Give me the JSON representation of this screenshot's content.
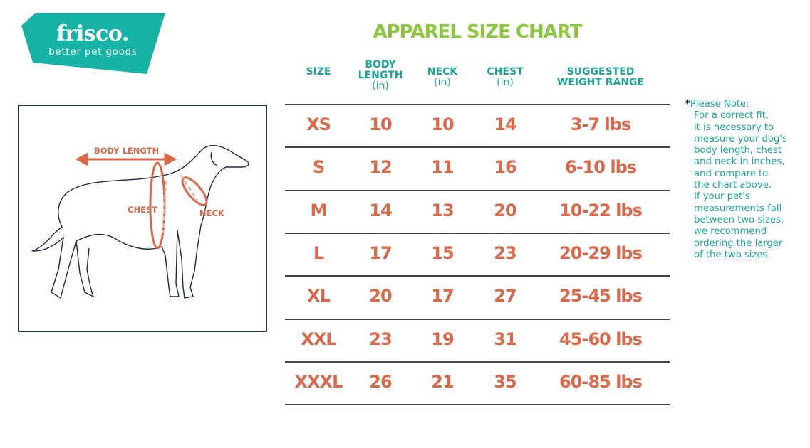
{
  "logo": {
    "name": "frisco.",
    "tagline": "better pet goods",
    "color": "#17b3a6"
  },
  "title": "APPAREL SIZE CHART",
  "diagram": {
    "labels": {
      "body_length": "BODY LENGTH",
      "chest": "CHEST",
      "neck": "NECK"
    },
    "accent": "#d9694a"
  },
  "table": {
    "headers": [
      {
        "label": "SIZE",
        "unit": ""
      },
      {
        "label": "BODY LENGTH",
        "unit": "(in)"
      },
      {
        "label": "NECK",
        "unit": "(in)"
      },
      {
        "label": "CHEST",
        "unit": "(in)"
      },
      {
        "label": "SUGGESTED WEIGHT RANGE",
        "unit": ""
      }
    ],
    "rows": [
      [
        "XS",
        "10",
        "10",
        "14",
        "3-7 lbs"
      ],
      [
        "S",
        "12",
        "11",
        "16",
        "6-10 lbs"
      ],
      [
        "M",
        "14",
        "13",
        "20",
        "10-22 lbs"
      ],
      [
        "L",
        "17",
        "15",
        "23",
        "20-29 lbs"
      ],
      [
        "XL",
        "20",
        "17",
        "27",
        "25-45 lbs"
      ],
      [
        "XXL",
        "23",
        "19",
        "31",
        "45-60 lbs"
      ],
      [
        "XXXL",
        "26",
        "21",
        "35",
        "60-85 lbs"
      ]
    ]
  },
  "note": {
    "asterisk": "*",
    "heading": "Please Note:",
    "lines": [
      "For a correct fit,",
      "it is necessary to",
      "measure your dog's",
      "body length, chest",
      "and neck in inches,",
      "and compare to",
      "the chart above.",
      "If your pet's",
      "measurements fall",
      "between two sizes,",
      "we recommend",
      "ordering the larger",
      "of the two sizes."
    ]
  },
  "colors": {
    "teal": "#1ba797",
    "green": "#8cc63f",
    "orange": "#d9694a",
    "navy": "#22344f"
  }
}
